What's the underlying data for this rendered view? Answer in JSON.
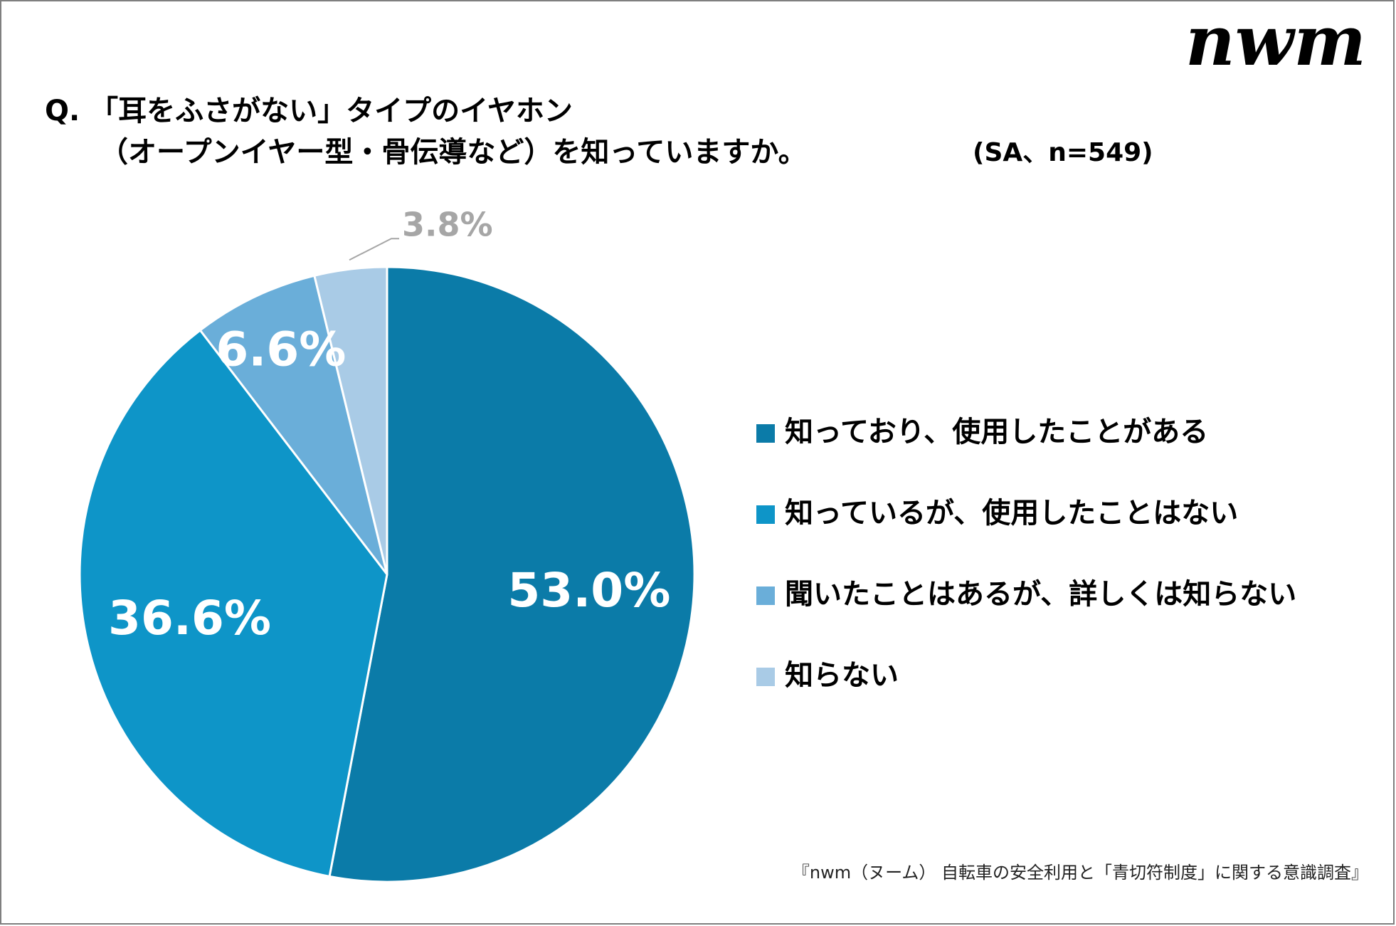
{
  "logo": "nwm",
  "chart_data": {
    "type": "pie",
    "title": [
      "Q. 「耳をふさがない」タイプのイヤホン",
      "（オープンイヤー型・骨伝導など）を知っていますか。"
    ],
    "subtitle": "(SA、n=549)",
    "categories": [
      "知っており、使用したことがある",
      "知っているが、使用したことはない",
      "聞いたことはあるが、詳しくは知らない",
      "知らない"
    ],
    "values": [
      53.0,
      36.6,
      6.6,
      3.8
    ],
    "value_labels": [
      "53.0%",
      "36.6%",
      "6.6%",
      "3.8%"
    ],
    "colors": [
      "#0b7ba8",
      "#0e95c8",
      "#6aaed9",
      "#a9cbe6"
    ],
    "legend": "right",
    "footnote": "『nwm（ヌーム） 自転車の安全利用と「青切符制度」に関する意識調査』"
  }
}
